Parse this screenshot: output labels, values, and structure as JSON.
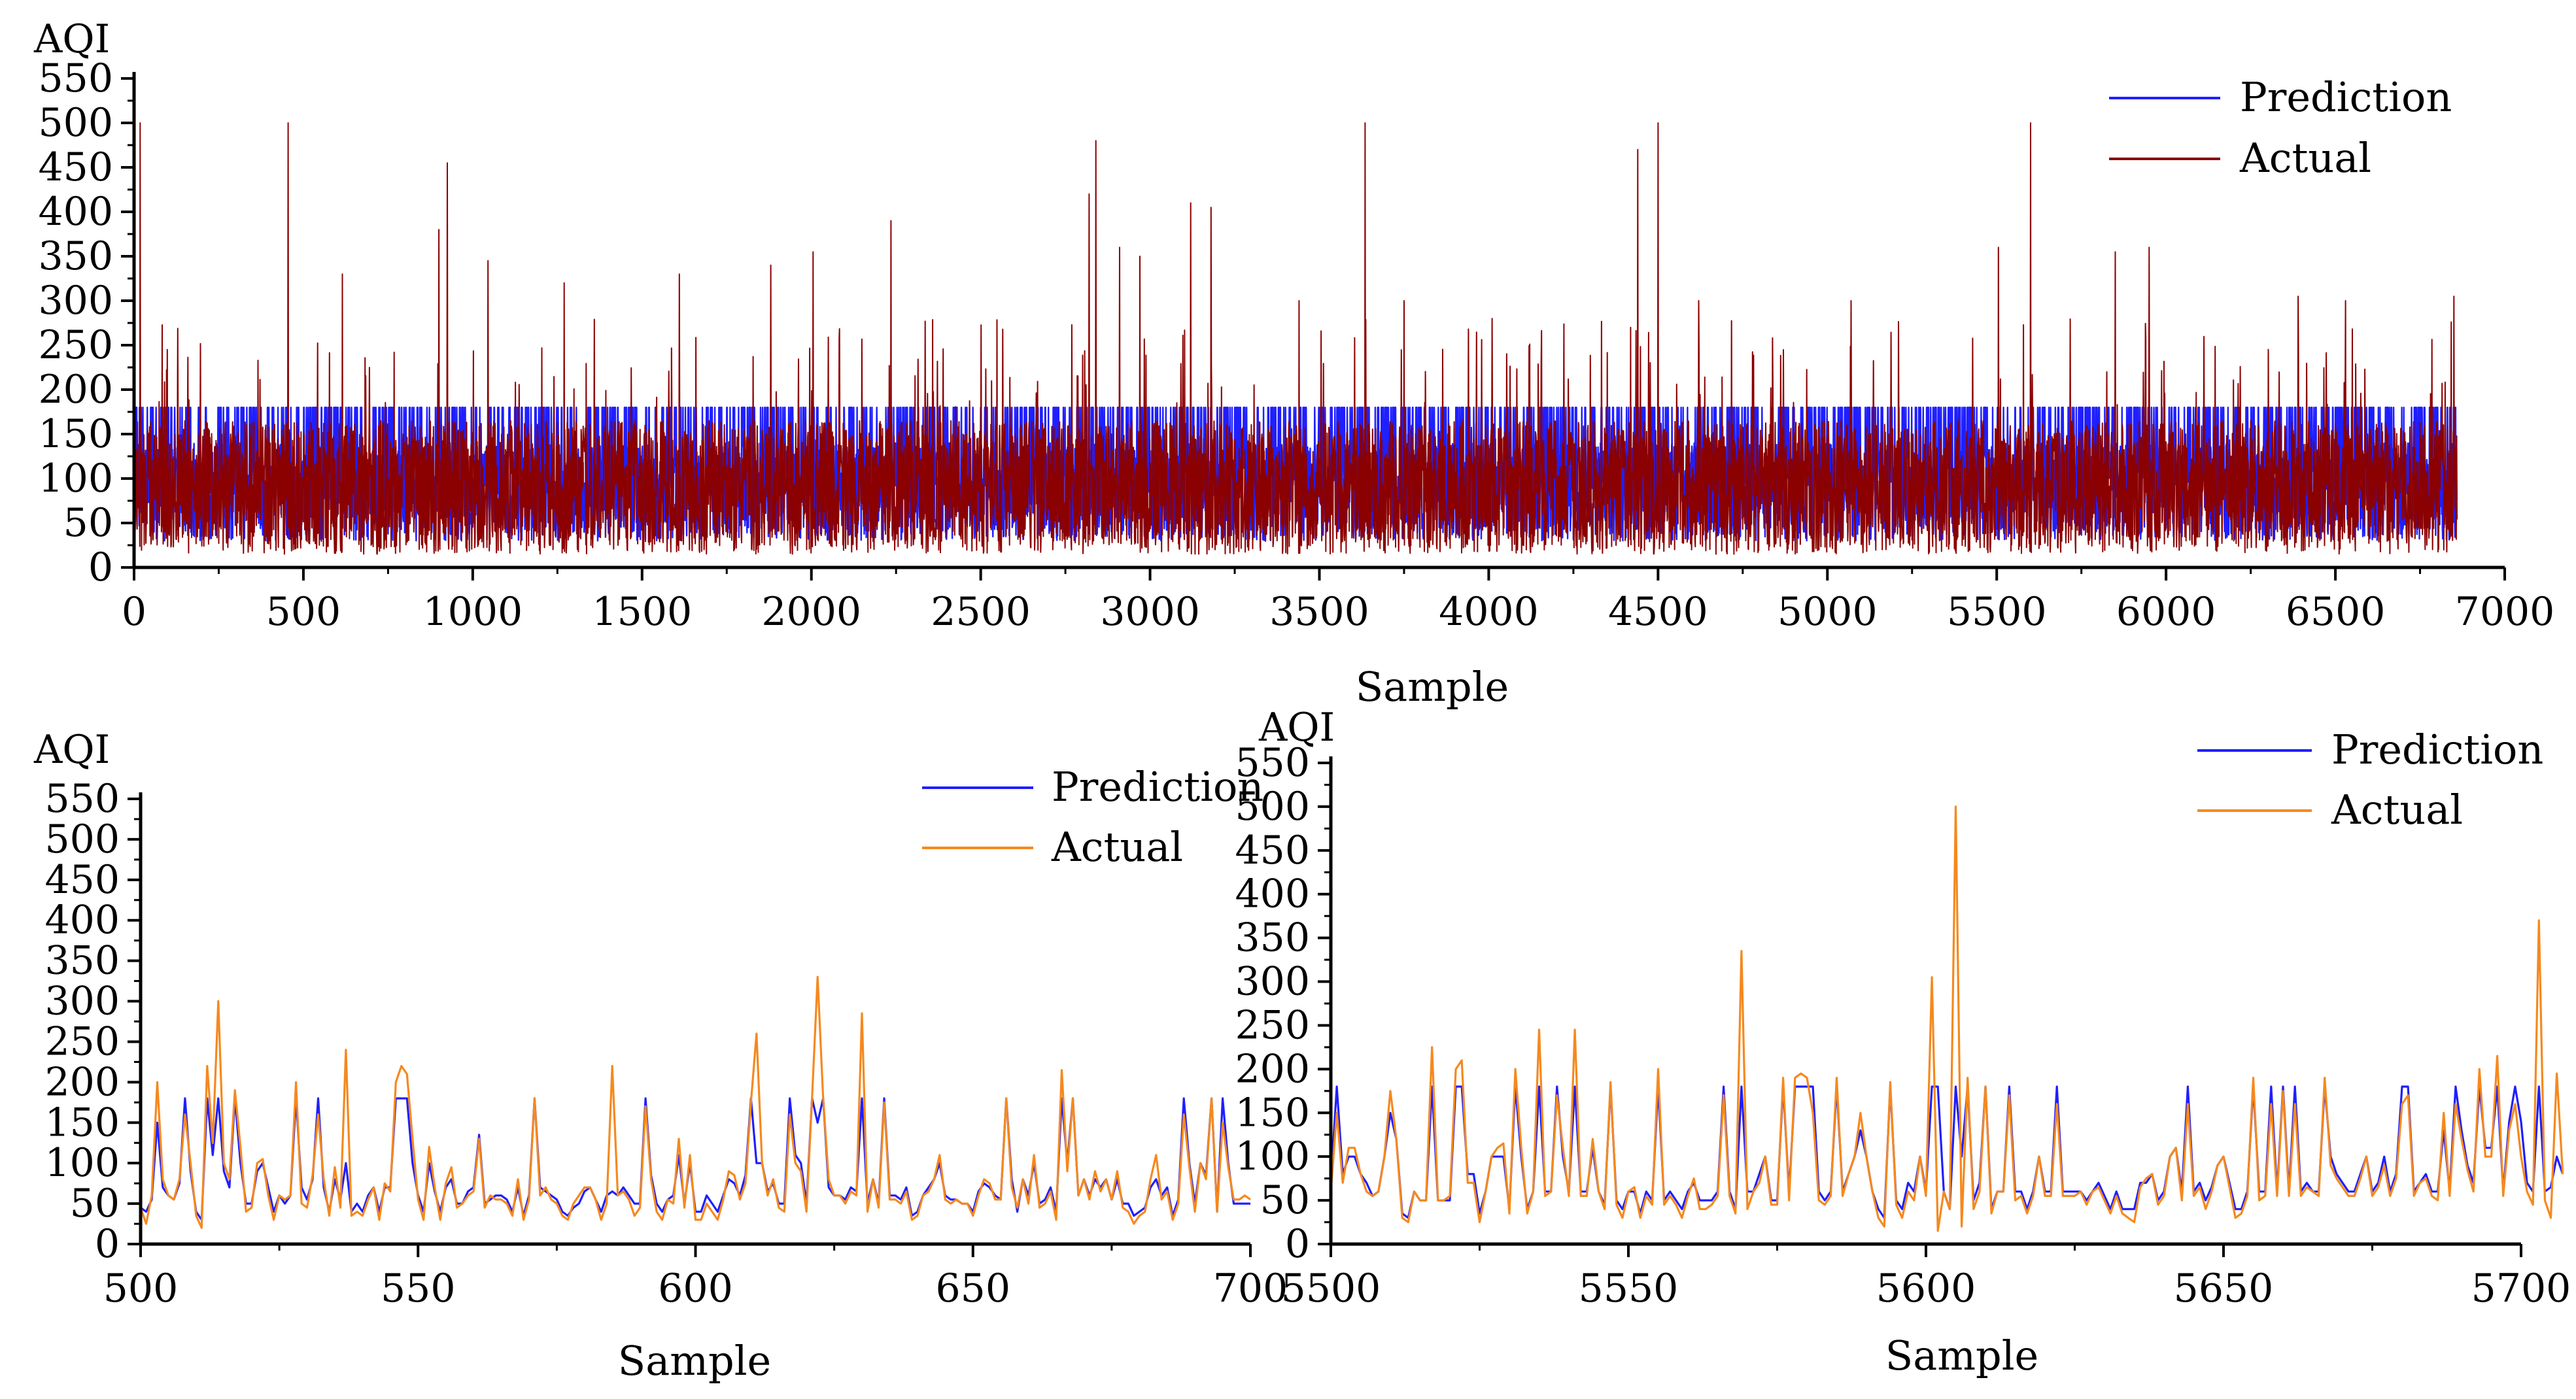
{
  "chart_data": [
    {
      "id": "top",
      "type": "line",
      "ylabel": "AQI",
      "xlabel": "Sample",
      "xlim": [
        0,
        7000
      ],
      "ylim": [
        0,
        550
      ],
      "xticks": [
        0,
        500,
        1000,
        1500,
        2000,
        2500,
        3000,
        3500,
        4000,
        4500,
        5000,
        5500,
        6000,
        6500,
        7000
      ],
      "yticks": [
        0,
        50,
        100,
        150,
        200,
        250,
        300,
        350,
        400,
        450,
        500,
        550
      ],
      "legend_position": "top-right",
      "n_samples": 6860,
      "series": [
        {
          "name": "Prediction",
          "color": "#1f1fff",
          "values_shape": "dense series roughly 30-180, frequently reaching the cap of about 180"
        },
        {
          "name": "Actual",
          "color": "#8b0000",
          "values_shape": "dense series roughly 10-200 with spikes",
          "peaks": [
            [
              18,
              500
            ],
            [
              455,
              500
            ],
            [
              615,
              330
            ],
            [
              900,
              380
            ],
            [
              925,
              455
            ],
            [
              1045,
              345
            ],
            [
              1270,
              320
            ],
            [
              1610,
              330
            ],
            [
              1880,
              340
            ],
            [
              2005,
              355
            ],
            [
              2235,
              390
            ],
            [
              2820,
              420
            ],
            [
              2840,
              480
            ],
            [
              2910,
              360
            ],
            [
              2970,
              350
            ],
            [
              3120,
              410
            ],
            [
              3180,
              405
            ],
            [
              3440,
              300
            ],
            [
              3635,
              500
            ],
            [
              3750,
              300
            ],
            [
              4010,
              280
            ],
            [
              4440,
              470
            ],
            [
              4500,
              500
            ],
            [
              4620,
              300
            ],
            [
              5070,
              300
            ],
            [
              5505,
              360
            ],
            [
              5600,
              500
            ],
            [
              5850,
              355
            ],
            [
              5950,
              360
            ],
            [
              6390,
              305
            ],
            [
              6530,
              300
            ],
            [
              6850,
              305
            ]
          ]
        }
      ]
    },
    {
      "id": "bottom-left",
      "type": "line",
      "ylabel": "AQI",
      "xlabel": "Sample",
      "xlim": [
        500,
        700
      ],
      "ylim": [
        0,
        550
      ],
      "xticks": [
        500,
        550,
        600,
        650,
        700
      ],
      "yticks": [
        0,
        50,
        100,
        150,
        200,
        250,
        300,
        350,
        400,
        450,
        500,
        550
      ],
      "legend_position": "top-right",
      "series": [
        {
          "name": "Prediction",
          "color": "#1f1fff",
          "start_x": 500,
          "values": [
            45,
            40,
            55,
            150,
            70,
            60,
            55,
            75,
            180,
            90,
            40,
            30,
            180,
            110,
            180,
            90,
            70,
            180,
            100,
            50,
            50,
            90,
            100,
            70,
            40,
            60,
            50,
            60,
            180,
            70,
            55,
            80,
            180,
            70,
            40,
            80,
            55,
            100,
            40,
            50,
            40,
            60,
            70,
            40,
            70,
            70,
            180,
            180,
            180,
            100,
            60,
            40,
            100,
            65,
            40,
            70,
            80,
            50,
            50,
            65,
            70,
            135,
            50,
            55,
            60,
            60,
            55,
            40,
            70,
            35,
            60,
            180,
            70,
            65,
            60,
            55,
            40,
            35,
            45,
            50,
            65,
            70,
            55,
            40,
            60,
            65,
            60,
            70,
            60,
            50,
            50,
            180,
            85,
            50,
            40,
            55,
            60,
            110,
            50,
            100,
            40,
            40,
            60,
            50,
            40,
            60,
            80,
            75,
            60,
            85,
            180,
            100,
            100,
            65,
            75,
            50,
            50,
            180,
            110,
            100,
            50,
            180,
            150,
            180,
            70,
            60,
            60,
            55,
            70,
            65,
            180,
            50,
            80,
            50,
            180,
            60,
            60,
            55,
            70,
            35,
            40,
            60,
            70,
            80,
            100,
            60,
            55,
            55,
            50,
            50,
            40,
            65,
            75,
            70,
            60,
            55,
            180,
            80,
            40,
            80,
            60,
            100,
            50,
            55,
            70,
            40,
            180,
            100,
            180,
            60,
            80,
            60,
            80,
            70,
            80,
            55,
            80,
            50,
            50,
            35,
            40,
            45,
            70,
            80,
            60,
            70,
            35,
            55,
            180,
            100,
            50,
            100,
            85,
            180,
            40,
            180,
            100,
            50,
            50,
            50,
            50
          ]
        },
        {
          "name": "Actual",
          "color": "#f5891f",
          "start_x": 500,
          "values": [
            45,
            25,
            60,
            200,
            80,
            60,
            55,
            80,
            160,
            100,
            35,
            20,
            220,
            125,
            300,
            100,
            80,
            190,
            120,
            40,
            45,
            100,
            105,
            60,
            30,
            60,
            55,
            60,
            200,
            50,
            45,
            85,
            160,
            80,
            35,
            95,
            45,
            240,
            35,
            40,
            35,
            55,
            70,
            30,
            75,
            65,
            200,
            220,
            210,
            130,
            55,
            30,
            120,
            70,
            30,
            75,
            95,
            45,
            50,
            60,
            65,
            130,
            45,
            60,
            55,
            55,
            50,
            35,
            80,
            30,
            55,
            180,
            60,
            70,
            55,
            50,
            35,
            30,
            50,
            60,
            70,
            70,
            55,
            30,
            50,
            220,
            60,
            65,
            55,
            35,
            45,
            170,
            80,
            40,
            30,
            55,
            50,
            130,
            45,
            110,
            30,
            30,
            50,
            40,
            30,
            55,
            90,
            85,
            55,
            75,
            175,
            260,
            100,
            60,
            80,
            45,
            40,
            160,
            100,
            90,
            40,
            180,
            330,
            180,
            80,
            60,
            60,
            50,
            65,
            60,
            285,
            40,
            80,
            45,
            175,
            55,
            55,
            50,
            65,
            30,
            35,
            60,
            65,
            80,
            110,
            55,
            50,
            55,
            50,
            50,
            35,
            60,
            80,
            75,
            55,
            55,
            180,
            70,
            45,
            80,
            50,
            110,
            45,
            50,
            65,
            30,
            215,
            90,
            180,
            60,
            80,
            55,
            90,
            65,
            80,
            55,
            90,
            45,
            40,
            25,
            35,
            40,
            80,
            110,
            55,
            65,
            30,
            50,
            160,
            95,
            40,
            100,
            80,
            180,
            40,
            150,
            95,
            55,
            55,
            60,
            55
          ]
        }
      ]
    },
    {
      "id": "bottom-right",
      "type": "line",
      "ylabel": "AQI",
      "xlabel": "Sample",
      "xlim": [
        5500,
        5700
      ],
      "ylim": [
        0,
        550
      ],
      "xticks": [
        5500,
        5550,
        5600,
        5650,
        5700
      ],
      "yticks": [
        0,
        50,
        100,
        150,
        200,
        250,
        300,
        350,
        400,
        450,
        500,
        550
      ],
      "legend_position": "top-right",
      "series": [
        {
          "name": "Prediction",
          "color": "#1f1fff",
          "start_x": 5500,
          "values": [
            70,
            180,
            80,
            100,
            100,
            80,
            70,
            55,
            60,
            100,
            150,
            120,
            35,
            30,
            60,
            50,
            50,
            180,
            50,
            50,
            50,
            180,
            180,
            80,
            80,
            35,
            60,
            100,
            100,
            100,
            40,
            180,
            100,
            40,
            60,
            180,
            60,
            60,
            180,
            100,
            60,
            180,
            60,
            60,
            110,
            60,
            45,
            180,
            50,
            40,
            60,
            60,
            35,
            60,
            50,
            180,
            50,
            60,
            50,
            40,
            60,
            70,
            50,
            50,
            50,
            60,
            180,
            60,
            40,
            180,
            60,
            60,
            80,
            100,
            50,
            50,
            180,
            60,
            180,
            180,
            180,
            180,
            60,
            50,
            60,
            180,
            60,
            80,
            100,
            130,
            100,
            60,
            40,
            30,
            180,
            50,
            40,
            70,
            60,
            100,
            60,
            180,
            180,
            60,
            40,
            180,
            100,
            180,
            50,
            70,
            180,
            40,
            60,
            60,
            180,
            60,
            60,
            40,
            60,
            100,
            60,
            60,
            180,
            60,
            60,
            60,
            60,
            50,
            60,
            70,
            55,
            40,
            60,
            40,
            40,
            40,
            70,
            70,
            80,
            50,
            60,
            100,
            110,
            60,
            180,
            60,
            70,
            50,
            65,
            90,
            100,
            70,
            40,
            40,
            60,
            180,
            60,
            60,
            180,
            60,
            180,
            60,
            180,
            60,
            70,
            60,
            60,
            180,
            100,
            80,
            70,
            60,
            60,
            80,
            100,
            60,
            70,
            100,
            60,
            80,
            180,
            180,
            60,
            70,
            80,
            60,
            60,
            130,
            60,
            180,
            130,
            90,
            70,
            180,
            110,
            110,
            180,
            60,
            140,
            180,
            140,
            70,
            60,
            180,
            60,
            65,
            100,
            80
          ]
        },
        {
          "name": "Actual",
          "color": "#f5891f",
          "start_x": 5500,
          "values": [
            60,
            150,
            70,
            110,
            110,
            80,
            60,
            55,
            60,
            100,
            175,
            120,
            30,
            25,
            60,
            50,
            50,
            225,
            50,
            50,
            55,
            200,
            210,
            70,
            70,
            25,
            60,
            100,
            110,
            115,
            35,
            200,
            110,
            35,
            60,
            245,
            55,
            60,
            170,
            110,
            55,
            245,
            55,
            55,
            120,
            60,
            40,
            185,
            45,
            30,
            60,
            65,
            30,
            55,
            45,
            200,
            45,
            55,
            45,
            30,
            55,
            75,
            40,
            40,
            45,
            55,
            170,
            55,
            35,
            335,
            40,
            60,
            70,
            100,
            45,
            45,
            190,
            50,
            190,
            195,
            190,
            150,
            50,
            45,
            55,
            190,
            55,
            80,
            100,
            150,
            100,
            60,
            30,
            20,
            185,
            45,
            30,
            60,
            50,
            100,
            55,
            305,
            15,
            60,
            40,
            500,
            20,
            190,
            40,
            60,
            180,
            35,
            60,
            60,
            170,
            50,
            55,
            35,
            55,
            100,
            55,
            55,
            160,
            55,
            55,
            55,
            60,
            45,
            60,
            65,
            50,
            35,
            55,
            35,
            30,
            25,
            65,
            75,
            80,
            45,
            55,
            100,
            110,
            50,
            160,
            55,
            65,
            40,
            60,
            90,
            100,
            65,
            30,
            35,
            55,
            190,
            50,
            55,
            160,
            55,
            175,
            55,
            160,
            55,
            65,
            60,
            55,
            190,
            90,
            75,
            65,
            55,
            55,
            75,
            100,
            55,
            65,
            90,
            55,
            75,
            160,
            170,
            55,
            70,
            75,
            55,
            50,
            150,
            55,
            160,
            120,
            85,
            60,
            200,
            100,
            100,
            215,
            55,
            130,
            160,
            100,
            60,
            45,
            370,
            50,
            30,
            195,
            80
          ]
        }
      ]
    }
  ]
}
